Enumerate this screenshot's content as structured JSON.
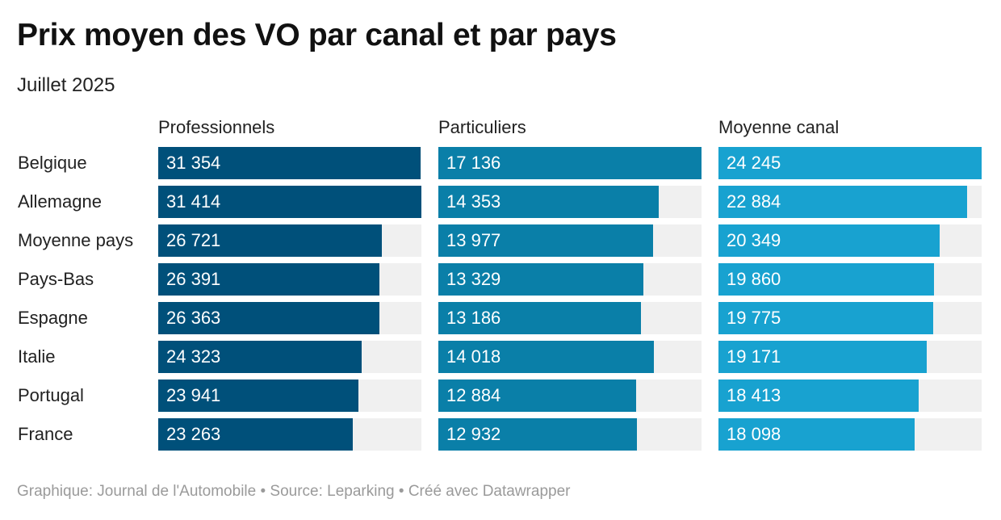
{
  "title": "Prix moyen des VO par canal et par pays",
  "subtitle": "Juillet 2025",
  "footer": "Graphique: Journal de l'Automobile • Source: Leparking • Créé avec Datawrapper",
  "chart_data": {
    "type": "bar",
    "title": "Prix moyen des VO par canal et par pays",
    "subtitle": "Juillet 2025",
    "orientation": "horizontal",
    "categories": [
      "Belgique",
      "Allemagne",
      "Moyenne pays",
      "Pays-Bas",
      "Espagne",
      "Italie",
      "Portugal",
      "France"
    ],
    "series": [
      {
        "name": "Professionnels",
        "color": "#00507a",
        "values": [
          31354,
          31414,
          26721,
          26391,
          26363,
          24323,
          23941,
          23263
        ],
        "labels": [
          "31 354",
          "31 414",
          "26 721",
          "26 391",
          "26 363",
          "24 323",
          "23 941",
          "23 263"
        ]
      },
      {
        "name": "Particuliers",
        "color": "#0a7fa8",
        "values": [
          17136,
          14353,
          13977,
          13329,
          13186,
          14018,
          12884,
          12932
        ],
        "labels": [
          "17 136",
          "14 353",
          "13 977",
          "13 329",
          "13 186",
          "14 018",
          "12 884",
          "12 932"
        ]
      },
      {
        "name": "Moyenne canal",
        "color": "#18a2d0",
        "values": [
          24245,
          22884,
          20349,
          19860,
          19775,
          19171,
          18413,
          18098
        ],
        "labels": [
          "24 245",
          "22 884",
          "20 349",
          "19 860",
          "19 775",
          "19 171",
          "18 413",
          "18 098"
        ]
      }
    ],
    "track_color": "#f0f0f0",
    "legend": "none",
    "grid": false
  }
}
